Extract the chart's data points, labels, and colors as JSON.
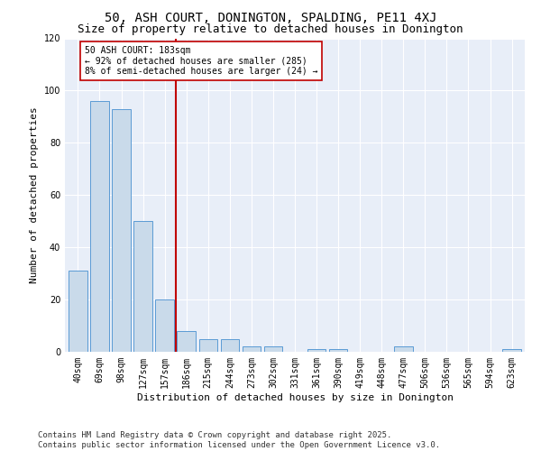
{
  "title": "50, ASH COURT, DONINGTON, SPALDING, PE11 4XJ",
  "subtitle": "Size of property relative to detached houses in Donington",
  "xlabel": "Distribution of detached houses by size in Donington",
  "ylabel": "Number of detached properties",
  "categories": [
    "40sqm",
    "69sqm",
    "98sqm",
    "127sqm",
    "157sqm",
    "186sqm",
    "215sqm",
    "244sqm",
    "273sqm",
    "302sqm",
    "331sqm",
    "361sqm",
    "390sqm",
    "419sqm",
    "448sqm",
    "477sqm",
    "506sqm",
    "536sqm",
    "565sqm",
    "594sqm",
    "623sqm"
  ],
  "values": [
    31,
    96,
    93,
    50,
    20,
    8,
    5,
    5,
    2,
    2,
    0,
    1,
    1,
    0,
    0,
    2,
    0,
    0,
    0,
    0,
    1
  ],
  "bar_color": "#c9daea",
  "bar_edge_color": "#5b9bd5",
  "vline_color": "#c00000",
  "annotation_text": "50 ASH COURT: 183sqm\n← 92% of detached houses are smaller (285)\n8% of semi-detached houses are larger (24) →",
  "annotation_box_color": "#ffffff",
  "annotation_box_edge": "#c00000",
  "ylim": [
    0,
    120
  ],
  "yticks": [
    0,
    20,
    40,
    60,
    80,
    100,
    120
  ],
  "bg_color": "#e8eef8",
  "footer_text": "Contains HM Land Registry data © Crown copyright and database right 2025.\nContains public sector information licensed under the Open Government Licence v3.0.",
  "title_fontsize": 10,
  "subtitle_fontsize": 9,
  "axis_label_fontsize": 8,
  "tick_fontsize": 7,
  "footer_fontsize": 6.5
}
